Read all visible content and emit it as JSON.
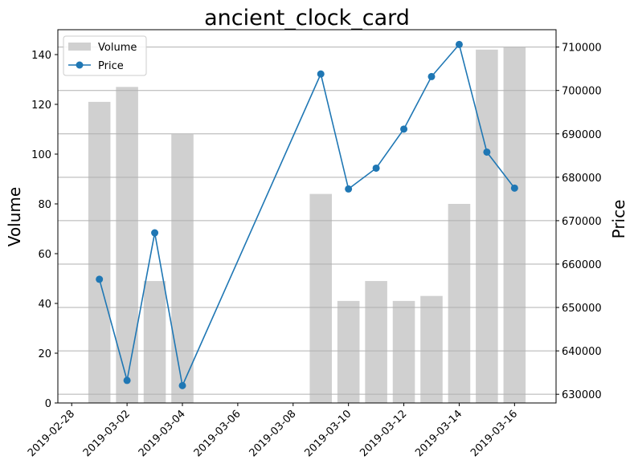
{
  "chart_data": {
    "type": "bar",
    "title": "ancient_clock_card",
    "xlabel": "",
    "ylabel": "Volume",
    "y2label": "Price",
    "x_ticks": [
      "2019-02-28",
      "2019-03-02",
      "2019-03-04",
      "2019-03-06",
      "2019-03-08",
      "2019-03-10",
      "2019-03-12",
      "2019-03-14",
      "2019-03-16"
    ],
    "y_ticks": [
      "0",
      "20",
      "40",
      "60",
      "80",
      "100",
      "120",
      "140"
    ],
    "y2_ticks": [
      "630000",
      "640000",
      "650000",
      "660000",
      "670000",
      "680000",
      "690000",
      "700000",
      "710000"
    ],
    "ylim": [
      0,
      150
    ],
    "y2lim": [
      628000,
      714000
    ],
    "grid": "horizontal (secondary axis)",
    "legend_position": "top-left",
    "x": [
      "2019-03-01",
      "2019-03-02",
      "2019-03-03",
      "2019-03-04",
      "2019-03-09",
      "2019-03-10",
      "2019-03-11",
      "2019-03-12",
      "2019-03-13",
      "2019-03-14",
      "2019-03-15",
      "2019-03-16"
    ],
    "series": [
      {
        "name": "Volume",
        "kind": "bar",
        "axis": "left",
        "color": "#d0d0d0",
        "values": [
          121,
          127,
          49,
          108,
          84,
          41,
          49,
          41,
          43,
          80,
          142,
          143
        ]
      },
      {
        "name": "Price",
        "kind": "line",
        "axis": "right",
        "color": "#1f77b4",
        "values": [
          656500,
          633200,
          667200,
          632000,
          703800,
          677300,
          682100,
          691100,
          703200,
          710600,
          685800,
          677500
        ]
      }
    ]
  }
}
